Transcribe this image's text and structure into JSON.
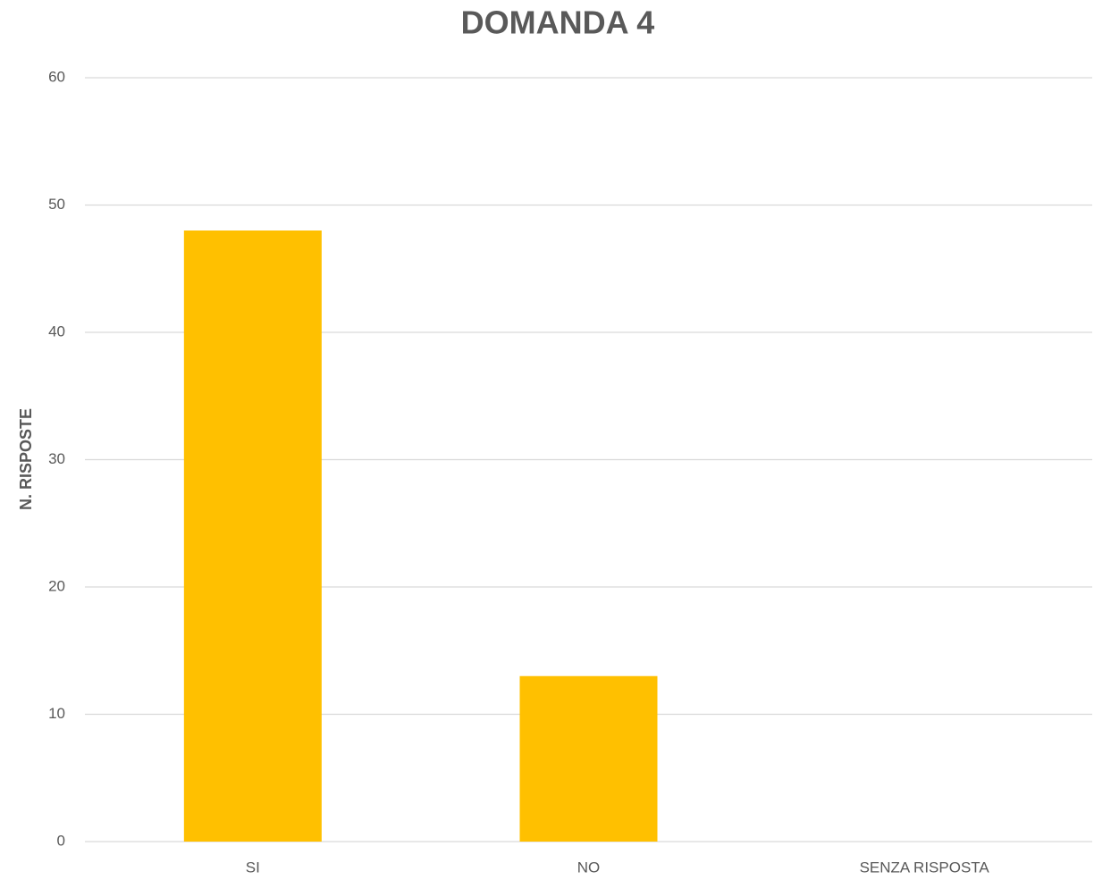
{
  "chart_data": {
    "type": "bar",
    "title": "DOMANDA 4",
    "y_label": "N. RISPOSTE",
    "categories": [
      "SI",
      "NO",
      "SENZA RISPOSTA"
    ],
    "values": [
      48,
      13,
      0
    ],
    "color": "#ffc000",
    "ylim": [
      0,
      60
    ],
    "yticks": [
      0,
      10,
      20,
      30,
      40,
      50,
      60
    ],
    "grid": true
  }
}
